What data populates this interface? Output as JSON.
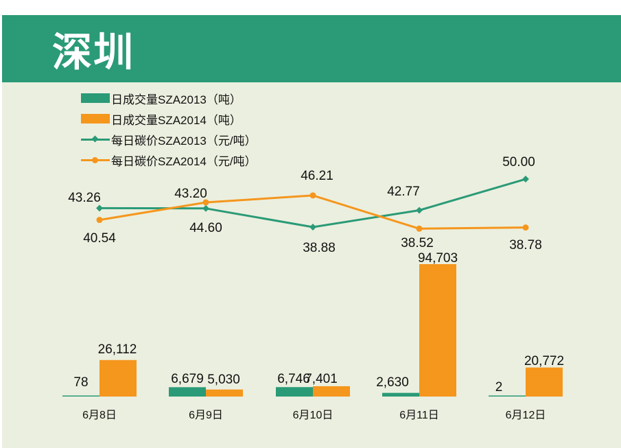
{
  "header": {
    "title": "深圳"
  },
  "colors": {
    "header_bg": "#2a9a77",
    "panel_bg": "#ebefdf",
    "series_2013": "#2a9a77",
    "series_2014": "#f5961d"
  },
  "legend": [
    {
      "label": "日成交量SZA2013（吨）",
      "kind": "bar",
      "color": "#2a9a77"
    },
    {
      "label": "日成交量SZA2014（吨）",
      "kind": "bar",
      "color": "#f5961d"
    },
    {
      "label": "每日碳价SZA2013（元/吨）",
      "kind": "line-diamond",
      "color": "#2a9a77"
    },
    {
      "label": "每日碳价SZA2014（元/吨）",
      "kind": "line-circle",
      "color": "#f5961d"
    }
  ],
  "chart_data": {
    "type": "bar",
    "categories": [
      "6月8日",
      "6月9日",
      "6月10日",
      "6月11日",
      "6月12日"
    ],
    "bar_series": [
      {
        "name": "日成交量SZA2013（吨）",
        "values": [
          78,
          6679,
          6746,
          2630,
          2
        ],
        "labels": [
          "78",
          "6,679",
          "6,746",
          "2,630",
          "2"
        ]
      },
      {
        "name": "日成交量SZA2014（吨）",
        "values": [
          26112,
          5030,
          7401,
          94703,
          20772
        ],
        "labels": [
          "26,112",
          "5,030",
          "7,401",
          "94,703",
          "20,772"
        ]
      }
    ],
    "line_series": [
      {
        "name": "每日碳价SZA2013（元/吨）",
        "marker": "diamond",
        "values": [
          43.26,
          43.2,
          38.88,
          42.77,
          50.0
        ],
        "labels": [
          "43.26",
          "43.20",
          "38.88",
          "42.77",
          "50.00"
        ]
      },
      {
        "name": "每日碳价SZA2014（元/吨）",
        "marker": "circle",
        "values": [
          40.54,
          44.6,
          46.21,
          38.52,
          38.78
        ],
        "labels": [
          "40.54",
          "44.60",
          "46.21",
          "38.52",
          "38.78"
        ]
      }
    ],
    "bar_ylim": [
      0,
      100000
    ],
    "line_ylim": [
      36,
      52
    ],
    "grid": false,
    "legend_position": "top-left"
  }
}
